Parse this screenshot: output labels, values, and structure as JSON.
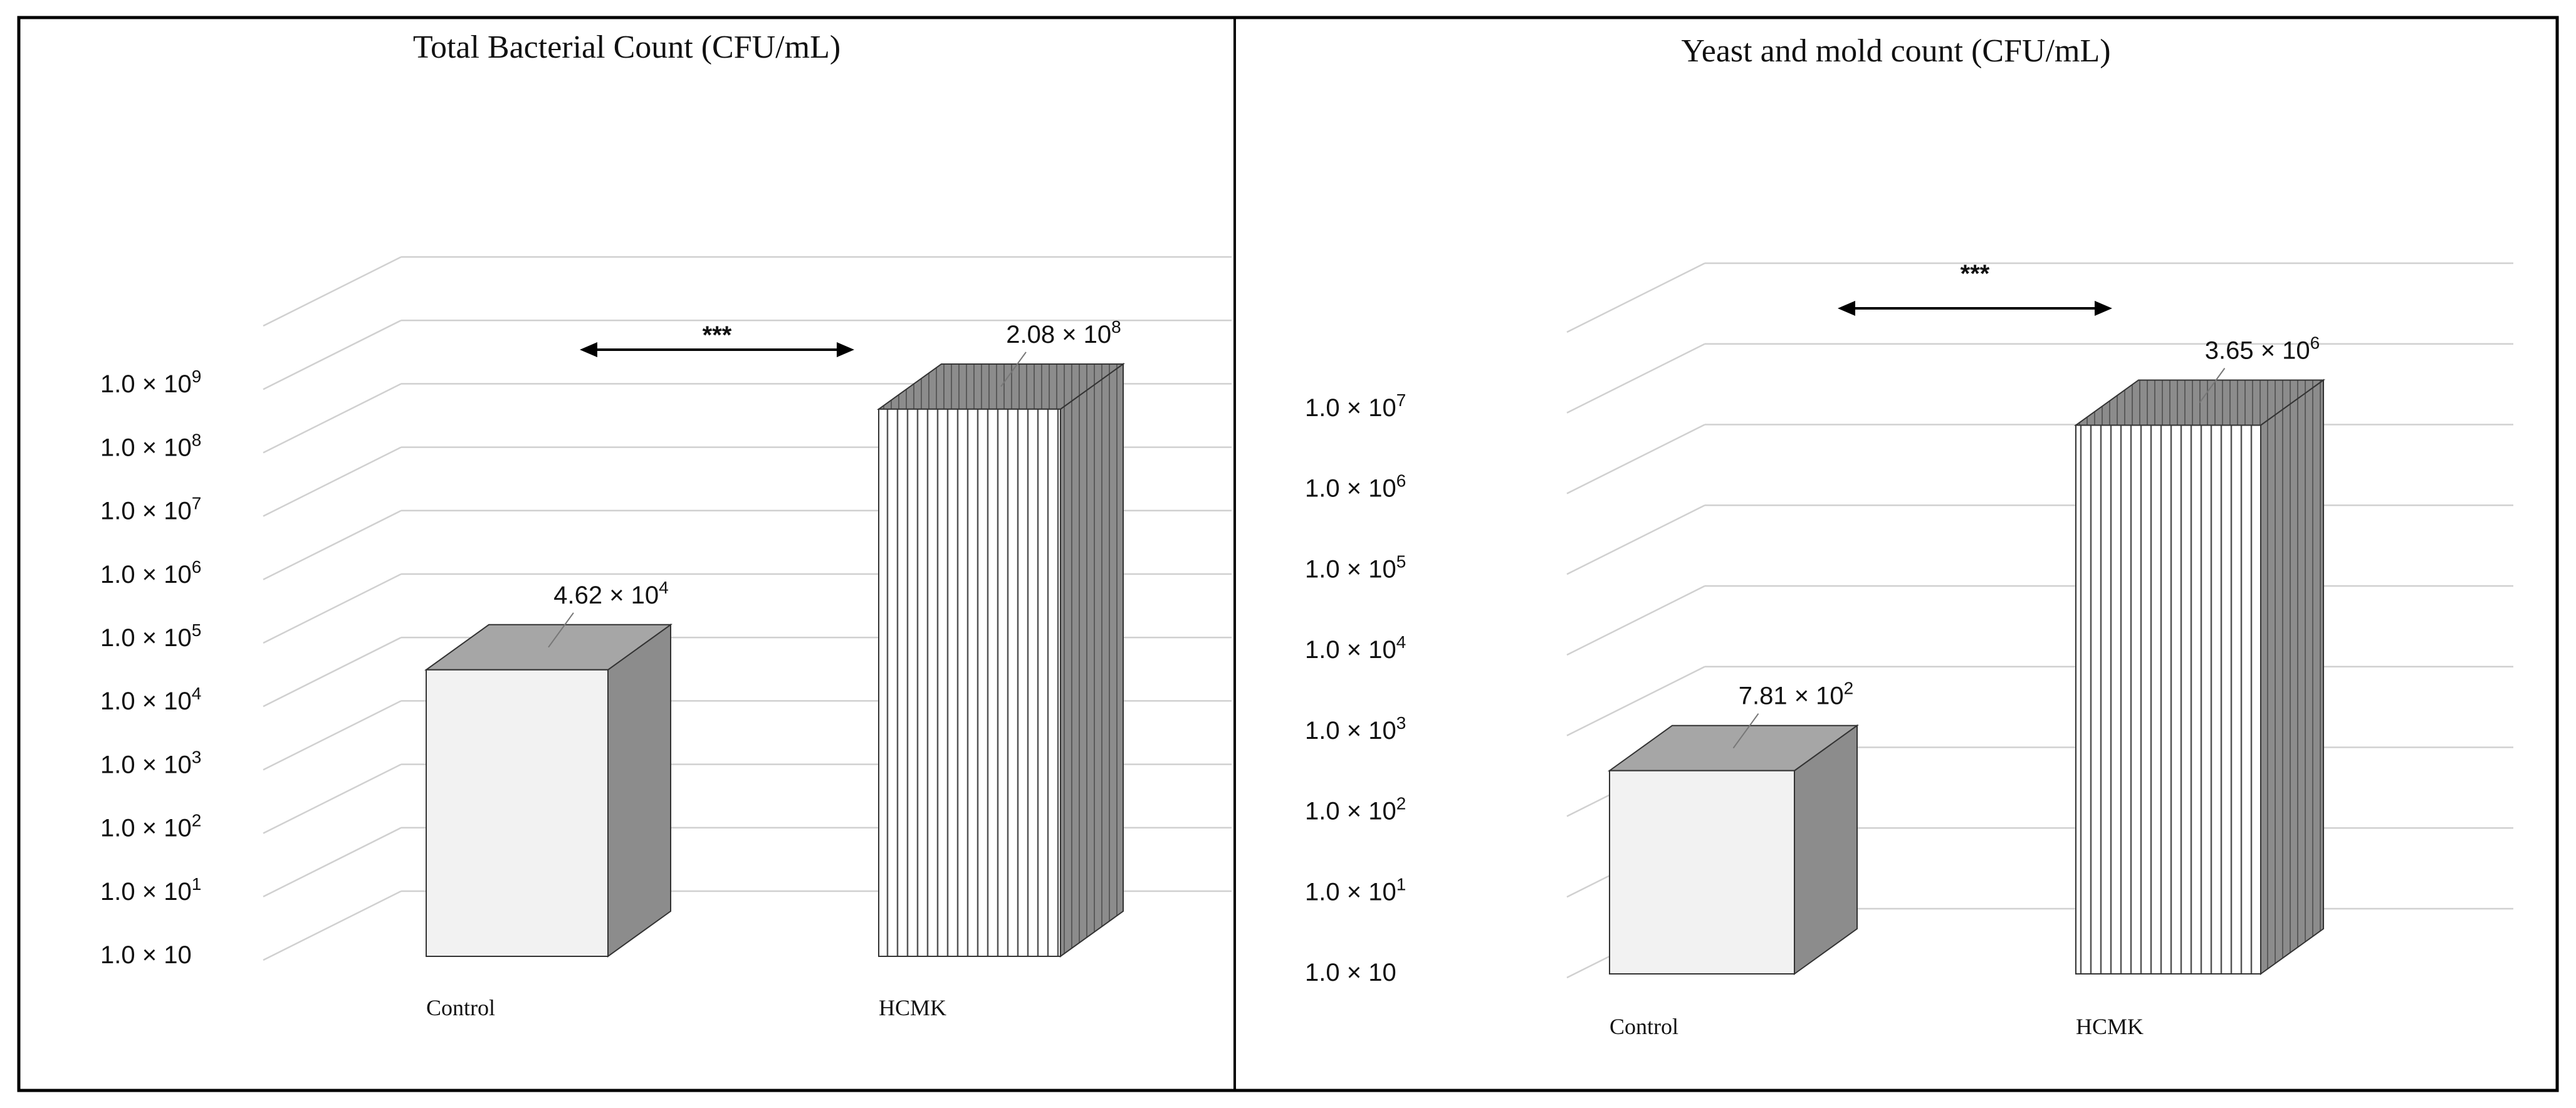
{
  "colors": {
    "grid": "#d0d0d0",
    "frame": "#000000",
    "control_front": "#f2f2f2",
    "top_face": "#a6a6a6",
    "side_face": "#8c8c8c",
    "bar_edge": "#333333"
  },
  "chart_data": [
    {
      "type": "bar",
      "title": "Total Bacterial  Count (CFU/mL)",
      "categories": [
        "Control",
        "HCMK"
      ],
      "values": [
        46200,
        208000000
      ],
      "value_labels": [
        {
          "base": "4.62 × 10",
          "exp": "4"
        },
        {
          "base": "2.08 × 10",
          "exp": "8"
        }
      ],
      "bar_fill": [
        "solid-light",
        "vertical-stripes"
      ],
      "y_scale": "log",
      "ylim": [
        10,
        1000000000
      ],
      "y_ticks": [
        {
          "base": "1.0 × 10",
          "exp": ""
        },
        {
          "base": "1.0 × 10",
          "exp": "1"
        },
        {
          "base": "1.0 × 10",
          "exp": "2"
        },
        {
          "base": "1.0 × 10",
          "exp": "3"
        },
        {
          "base": "1.0 × 10",
          "exp": "4"
        },
        {
          "base": "1.0 × 10",
          "exp": "5"
        },
        {
          "base": "1.0 × 10",
          "exp": "6"
        },
        {
          "base": "1.0 × 10",
          "exp": "7"
        },
        {
          "base": "1.0 × 10",
          "exp": "8"
        },
        {
          "base": "1.0 × 10",
          "exp": "9"
        }
      ],
      "significance": "***",
      "legend": "none",
      "grid": true
    },
    {
      "type": "bar",
      "title": "Yeast and mold count (CFU/mL)",
      "categories": [
        "Control",
        "HCMK"
      ],
      "values": [
        781,
        3650000
      ],
      "value_labels": [
        {
          "base": "7.81 × 10",
          "exp": "2"
        },
        {
          "base": "3.65 × 10",
          "exp": "6"
        }
      ],
      "bar_fill": [
        "solid-light",
        "vertical-stripes"
      ],
      "y_scale": "log",
      "ylim": [
        10,
        10000000
      ],
      "y_ticks": [
        {
          "base": "1.0 × 10",
          "exp": ""
        },
        {
          "base": "1.0 × 10",
          "exp": "1"
        },
        {
          "base": "1.0 × 10",
          "exp": "2"
        },
        {
          "base": "1.0 × 10",
          "exp": "3"
        },
        {
          "base": "1.0 × 10",
          "exp": "4"
        },
        {
          "base": "1.0 × 10",
          "exp": "5"
        },
        {
          "base": "1.0 × 10",
          "exp": "6"
        },
        {
          "base": "1.0 × 10",
          "exp": "7"
        }
      ],
      "significance": "***",
      "legend": "none",
      "grid": true
    }
  ]
}
